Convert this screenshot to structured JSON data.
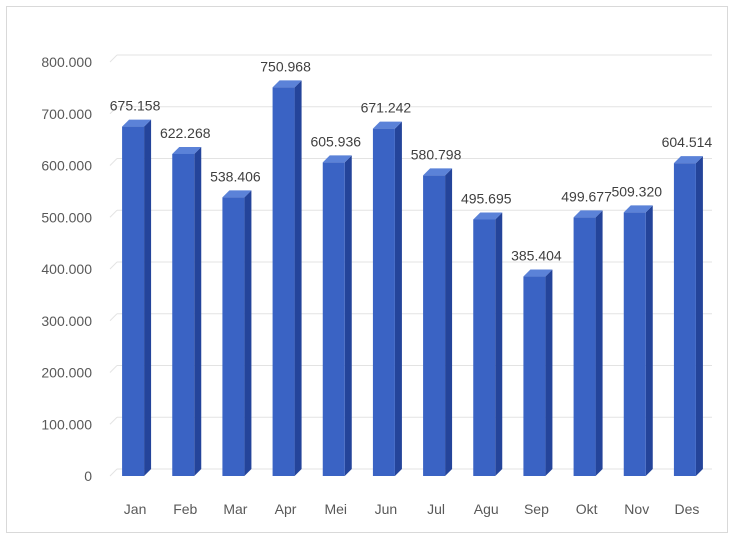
{
  "chart_data": {
    "type": "bar",
    "categories": [
      "Jan",
      "Feb",
      "Mar",
      "Apr",
      "Mei",
      "Jun",
      "Jul",
      "Agu",
      "Sep",
      "Okt",
      "Nov",
      "Des"
    ],
    "values": [
      675158,
      622268,
      538406,
      750968,
      605936,
      671242,
      580798,
      495695,
      385404,
      499677,
      509320,
      604514
    ],
    "data_labels": [
      "675.158",
      "622.268",
      "538.406",
      "750.968",
      "605.936",
      "671.242",
      "580.798",
      "495.695",
      "385.404",
      "499.677",
      "509.320",
      "604.514"
    ],
    "y_ticks": [
      0,
      100000,
      200000,
      300000,
      400000,
      500000,
      600000,
      700000,
      800000
    ],
    "y_tick_labels": [
      "0",
      "100.000",
      "200.000",
      "300.000",
      "400.000",
      "500.000",
      "600.000",
      "700.000",
      "800.000"
    ],
    "ylim": [
      0,
      800000
    ],
    "grid": true,
    "bar_style": "3d-column",
    "colors": {
      "bar_front": "#3a63c4",
      "bar_side": "#24449a",
      "bar_top": "#5b82d8",
      "grid": "#e3e3e3"
    }
  }
}
